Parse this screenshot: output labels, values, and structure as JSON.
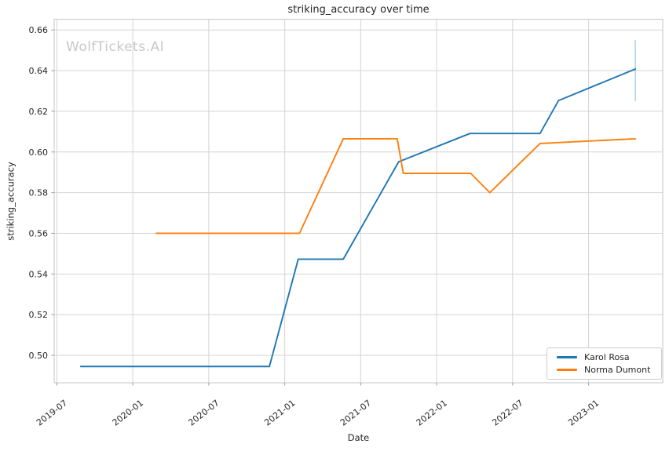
{
  "watermark": "WolfTickets.AI",
  "chart_data": {
    "type": "line",
    "title": "striking_accuracy over time",
    "xlabel": "Date",
    "ylabel": "striking_accuracy",
    "grid": true,
    "legend_position": "lower right",
    "x_tick_labels": [
      "2019-07",
      "2020-01",
      "2020-07",
      "2021-01",
      "2021-07",
      "2022-01",
      "2022-07",
      "2023-01"
    ],
    "y_tick_labels": [
      "0.50",
      "0.52",
      "0.54",
      "0.56",
      "0.58",
      "0.60",
      "0.62",
      "0.64",
      "0.66"
    ],
    "xlim_dates": [
      "2019-06-25",
      "2023-06-27"
    ],
    "ylim": [
      0.4865,
      0.6653
    ],
    "colors": {
      "grid": "#d4d4d4",
      "spine": "#c6c6c6",
      "tick": "#999999",
      "text": "#262626"
    },
    "series": [
      {
        "name": "Karol Rosa",
        "color": "#1f77b4",
        "points": [
          {
            "date": "2019-08-28",
            "value": 0.4945
          },
          {
            "date": "2020-11-25",
            "value": 0.4945
          },
          {
            "date": "2021-02-03",
            "value": 0.5473
          },
          {
            "date": "2021-05-20",
            "value": 0.5473
          },
          {
            "date": "2021-10-01",
            "value": 0.5952
          },
          {
            "date": "2022-03-20",
            "value": 0.6091
          },
          {
            "date": "2022-09-06",
            "value": 0.6091
          },
          {
            "date": "2022-10-20",
            "value": 0.6253
          },
          {
            "date": "2023-04-22",
            "value": 0.6408
          }
        ]
      },
      {
        "name": "Norma Dumont",
        "color": "#ff7f0e",
        "points": [
          {
            "date": "2020-02-27",
            "value": 0.56
          },
          {
            "date": "2021-02-06",
            "value": 0.56
          },
          {
            "date": "2021-05-20",
            "value": 0.6065
          },
          {
            "date": "2021-09-28",
            "value": 0.6065
          },
          {
            "date": "2021-10-12",
            "value": 0.5895
          },
          {
            "date": "2022-03-22",
            "value": 0.5895
          },
          {
            "date": "2022-05-07",
            "value": 0.58
          },
          {
            "date": "2022-09-06",
            "value": 0.6042
          },
          {
            "date": "2023-04-22",
            "value": 0.6065
          }
        ]
      }
    ],
    "error_bar": {
      "series": "Karol Rosa",
      "date": "2023-04-22",
      "low": 0.625,
      "high": 0.655,
      "color": "#a9cce3"
    }
  }
}
